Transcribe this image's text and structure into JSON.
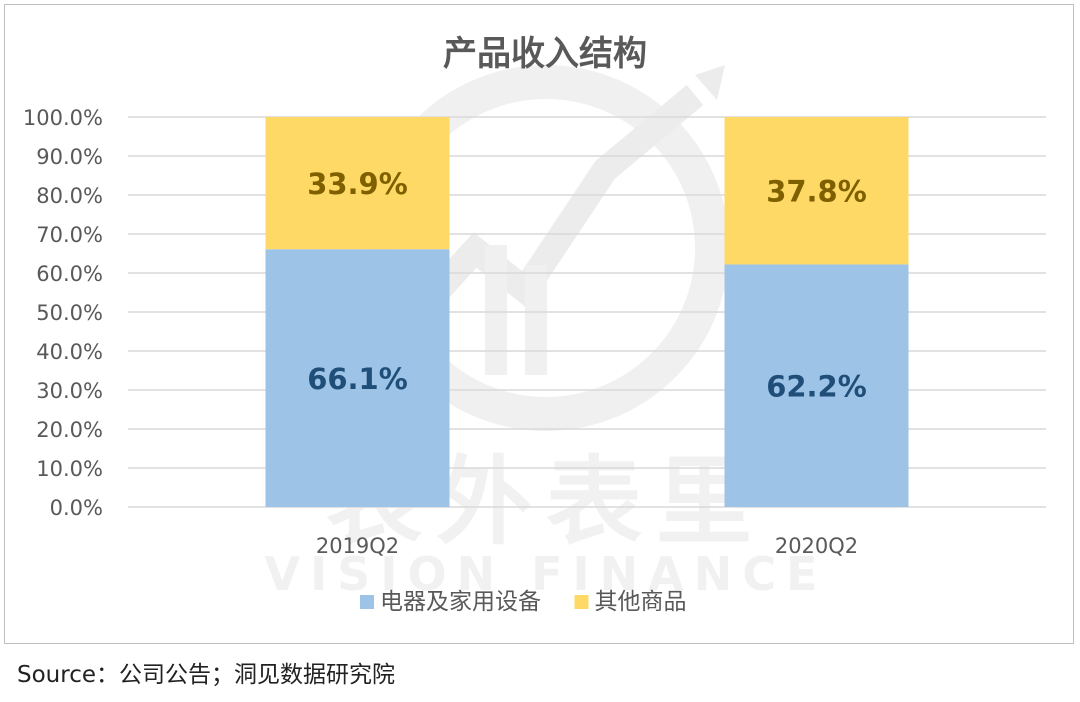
{
  "chart_data": {
    "type": "bar",
    "stacked": true,
    "title": "产品收入结构",
    "categories": [
      "2019Q2",
      "2020Q2"
    ],
    "series": [
      {
        "name": "电器及家用设备",
        "values": [
          66.1,
          62.2
        ],
        "labels": [
          "66.1%",
          "62.2%"
        ],
        "color": "#9dc3e6",
        "label_color": "#1f4e79"
      },
      {
        "name": "其他商品",
        "values": [
          33.9,
          37.8
        ],
        "labels": [
          "33.9%",
          "37.8%"
        ],
        "color": "#ffd966",
        "label_color": "#7f6000"
      }
    ],
    "y_ticks": [
      "0.0%",
      "10.0%",
      "20.0%",
      "30.0%",
      "40.0%",
      "50.0%",
      "60.0%",
      "70.0%",
      "80.0%",
      "90.0%",
      "100.0%"
    ],
    "ylim": [
      0,
      100
    ],
    "grid": true,
    "legend": "bottom"
  },
  "source": "Source：公司公告；洞见数据研究院",
  "colors": {
    "grid": "#d9d9d9",
    "axis_text": "#595959",
    "title": "#595959",
    "watermark": "#efefef"
  }
}
